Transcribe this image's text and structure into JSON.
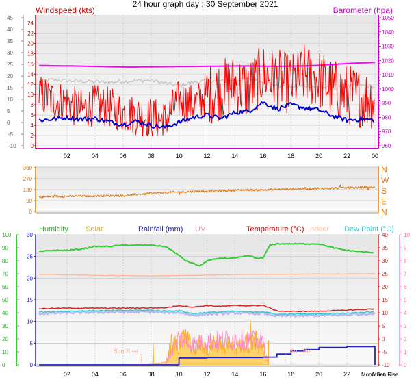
{
  "title": "24 hour graph day : 30 September 2021",
  "colors": {
    "windspeed": "#ff0000",
    "windavg": "#0000cc",
    "gust": "#c0c0c0",
    "barometer": "#ff00ff",
    "direction": "#dd7711",
    "humidity": "#33cc33",
    "solar": "#ffaa22",
    "rainfall": "#2222cc",
    "uv": "#ff88cc",
    "temperature": "#dd2222",
    "indoor": "#ffbb99",
    "dewpoint": "#33cccc"
  },
  "chart_data": [
    {
      "type": "line",
      "panel": "wind-barometer",
      "ylabel_left": "Windspeed (kts)",
      "ylabel_right": "Barometer (hpa)",
      "left_outer_ticks": [
        "45",
        "40",
        "35",
        "30",
        "25",
        "20",
        "15",
        "10",
        "5",
        "0"
      ],
      "left_outer_range": [
        -10,
        45
      ],
      "left_inner_ticks": [
        "24",
        "22",
        "20",
        "18",
        "16",
        "14",
        "12",
        "10",
        "8",
        "6",
        "4",
        "2",
        "0"
      ],
      "left_inner_range": [
        0,
        25
      ],
      "right_ticks": [
        "1050",
        "1040",
        "1030",
        "1020",
        "1010",
        "1000",
        "990",
        "980",
        "970",
        "960"
      ],
      "right_range": [
        960,
        1050
      ],
      "x_ticks": [
        "02",
        "04",
        "06",
        "08",
        "10",
        "12",
        "14",
        "16",
        "18",
        "20",
        "22",
        "00"
      ],
      "x_range_hours": [
        0,
        24
      ],
      "series": [
        {
          "name": "Barometer",
          "axis": "right",
          "x": [
            0,
            1,
            2,
            3,
            4,
            5,
            6,
            7,
            8,
            9,
            10,
            11,
            12,
            13,
            14,
            15,
            16,
            17,
            18,
            19,
            20,
            21,
            22,
            23,
            24
          ],
          "values": [
            1016.5,
            1016.3,
            1016.2,
            1016.0,
            1015.8,
            1015.6,
            1015.4,
            1015.4,
            1015.5,
            1015.6,
            1015.7,
            1015.8,
            1015.9,
            1016.0,
            1016.1,
            1016.1,
            1016.0,
            1015.9,
            1016.0,
            1016.2,
            1016.6,
            1017.2,
            1017.8,
            1018.3,
            1018.6
          ]
        },
        {
          "name": "Gust",
          "axis": "inner",
          "x": [
            0,
            1,
            2,
            3,
            4,
            5,
            6,
            7,
            8,
            9,
            10,
            11,
            12,
            13,
            14,
            15,
            16,
            17,
            18,
            19,
            20,
            21,
            22,
            23,
            24
          ],
          "values": [
            12.6,
            12.9,
            12.7,
            12.6,
            12.5,
            12.4,
            12.6,
            12.7,
            12.8,
            12.2,
            11.8,
            12.4,
            12.7,
            12.6,
            12.9,
            13.0,
            12.5,
            11.8,
            11.4,
            11.8,
            11.5,
            11.2,
            11.6,
            11.8,
            11.5
          ]
        },
        {
          "name": "Windspeed",
          "axis": "inner",
          "x": [
            0,
            1,
            2,
            3,
            4,
            5,
            6,
            7,
            8,
            9,
            10,
            11,
            12,
            13,
            14,
            15,
            16,
            17,
            18,
            19,
            20,
            21,
            22,
            23,
            24
          ],
          "values": [
            10,
            9,
            8.5,
            7,
            8,
            7.5,
            6.5,
            6,
            5.5,
            5,
            9,
            8,
            10,
            11,
            12,
            11,
            14,
            13,
            12,
            14,
            13,
            11,
            10,
            9.5,
            9
          ]
        },
        {
          "name": "Average",
          "axis": "inner",
          "x": [
            0,
            1,
            2,
            3,
            4,
            5,
            6,
            7,
            8,
            9,
            10,
            11,
            12,
            13,
            14,
            15,
            16,
            17,
            18,
            19,
            20,
            21,
            22,
            23,
            24
          ],
          "values": [
            5,
            5.2,
            5.5,
            5.2,
            5.3,
            4.7,
            4.2,
            4.8,
            4.0,
            3.6,
            4.6,
            5.5,
            6.0,
            5.3,
            6.5,
            6.8,
            8.5,
            7.2,
            8.0,
            7.4,
            7.0,
            5.8,
            5.0,
            5.2,
            5.0
          ]
        }
      ]
    },
    {
      "type": "line",
      "panel": "wind-direction",
      "left_ticks": [
        "360",
        "270",
        "180",
        "90",
        "0"
      ],
      "left_range": [
        0,
        360
      ],
      "right_ticks": [
        "N",
        "W",
        "S",
        "E",
        "N"
      ],
      "x_range_hours": [
        0,
        24
      ],
      "series": [
        {
          "name": "Direction",
          "x": [
            0,
            2,
            4,
            6,
            8,
            10,
            12,
            14,
            16,
            18,
            20,
            22,
            24
          ],
          "values": [
            120,
            125,
            128,
            130,
            150,
            160,
            168,
            175,
            178,
            185,
            190,
            195,
            200
          ]
        }
      ]
    },
    {
      "type": "line",
      "panel": "temperature-humidity",
      "legend": [
        "Humidity",
        "Solar",
        "Rainfall (mm)",
        "UV",
        "Temperature (°C)",
        "Indoor",
        "Dew Point (°C)"
      ],
      "ticks_a": [
        "100",
        "90",
        "80",
        "70",
        "60",
        "50",
        "40",
        "30",
        "20",
        "10",
        "0"
      ],
      "ticks_a_range": [
        0,
        100
      ],
      "ticks_b": [
        "30",
        "25",
        "20",
        "15",
        "10",
        "5",
        "0"
      ],
      "ticks_b_range": [
        0,
        30
      ],
      "ticks_c": [
        "40",
        "35",
        "30",
        "25",
        "20",
        "15",
        "10",
        "5",
        "0",
        "-5",
        "-10"
      ],
      "ticks_c_range": [
        -10,
        40
      ],
      "ticks_d": [
        "10",
        "9",
        "8",
        "7",
        "6",
        "5",
        "4",
        "3",
        "2",
        "1",
        "0"
      ],
      "ticks_d_range": [
        0,
        10
      ],
      "x_ticks": [
        "02",
        "04",
        "06",
        "08",
        "10",
        "12",
        "14",
        "16",
        "18",
        "20",
        "22"
      ],
      "x_range_hours": [
        0,
        24
      ],
      "annotations": [
        "Sun Rise",
        "Sun Set",
        "Moon Set",
        "Moon Rise"
      ],
      "series": [
        {
          "name": "Humidity",
          "axis": "a",
          "x": [
            0,
            1,
            2,
            3,
            4,
            5,
            6,
            7,
            8,
            9,
            9.5,
            10,
            10.5,
            11,
            11.5,
            12,
            13,
            14,
            15,
            15.5,
            16,
            16.5,
            17,
            18,
            19,
            20,
            21,
            22,
            23,
            24
          ],
          "values": [
            87,
            88,
            88,
            89,
            91,
            91,
            92,
            92,
            92,
            91,
            88,
            84,
            80,
            78,
            76,
            80,
            82,
            82,
            84,
            82,
            82,
            92,
            93,
            93,
            93,
            93,
            90,
            88,
            87,
            86
          ]
        },
        {
          "name": "Temperature",
          "axis": "c",
          "x": [
            0,
            2,
            4,
            6,
            8,
            9,
            10,
            11,
            12,
            13,
            14,
            15,
            16,
            17,
            18,
            20,
            22,
            24
          ],
          "values": [
            11.6,
            11.8,
            11.8,
            11.8,
            11.9,
            11.9,
            12.8,
            12.2,
            12.8,
            12.5,
            12.8,
            12.7,
            12.9,
            10.7,
            10.5,
            10.6,
            11.0,
            11.5
          ]
        },
        {
          "name": "Dew Point",
          "axis": "c",
          "x": [
            0,
            2,
            4,
            6,
            8,
            9,
            10,
            11,
            12,
            13,
            14,
            15,
            16,
            17,
            18,
            20,
            22,
            24
          ],
          "values": [
            10.3,
            10.6,
            10.8,
            10.9,
            11.0,
            10.7,
            10.8,
            9.7,
            10.1,
            10.3,
            10.6,
            10.3,
            10.4,
            9.4,
            9.5,
            9.6,
            9.9,
            10.4
          ]
        },
        {
          "name": "Indoor",
          "axis": "c",
          "x": [
            0,
            4,
            8,
            12,
            16,
            20,
            24
          ],
          "values": [
            24.8,
            24.4,
            24.2,
            24.5,
            24.8,
            24.9,
            25.0
          ]
        },
        {
          "name": "Rainfall (mm)",
          "axis": "b",
          "x": [
            0,
            8,
            10,
            12,
            16,
            17,
            18,
            19,
            20,
            22,
            23.7,
            24
          ],
          "values": [
            0,
            0,
            1.6,
            1.7,
            1.8,
            2.5,
            3.2,
            3.5,
            4.0,
            4.2,
            4.2,
            0
          ]
        },
        {
          "name": "Solar",
          "axis": "b",
          "x": [
            7.5,
            9,
            9.5,
            10,
            10.5,
            11,
            11.5,
            12,
            13,
            14,
            15,
            16,
            16.4
          ],
          "values": [
            0,
            0.5,
            5,
            4,
            7,
            3,
            5,
            4,
            5,
            4,
            5,
            4,
            0
          ]
        },
        {
          "name": "UV",
          "axis": "d",
          "x": [
            9,
            10,
            11,
            12,
            13,
            14,
            15,
            16,
            16.4
          ],
          "values": [
            0,
            2,
            1.5,
            1.7,
            1.8,
            1.9,
            1.8,
            1.7,
            0
          ]
        }
      ]
    }
  ]
}
